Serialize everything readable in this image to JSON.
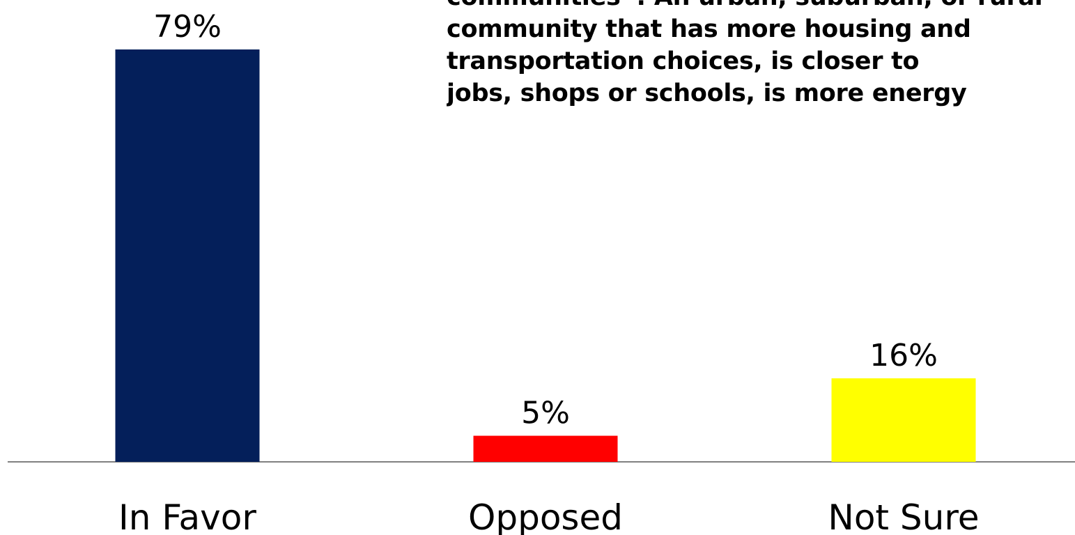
{
  "chart_data": {
    "type": "bar",
    "categories": [
      "In Favor",
      "Opposed",
      "Not Sure"
    ],
    "values": [
      79,
      5,
      16
    ],
    "value_labels": [
      "79%",
      "5%",
      "16%"
    ],
    "colors": [
      "#041f5a",
      "#ff0000",
      "#ffff00"
    ],
    "axis_color": "#808080",
    "ylim": [
      0,
      100
    ],
    "grid": false,
    "annotation_lines": [
      "communities”: An urban, suburban, or rural",
      "community that has more housing and",
      "transportation choices, is closer to",
      "jobs, shops or schools, is more energy"
    ]
  }
}
